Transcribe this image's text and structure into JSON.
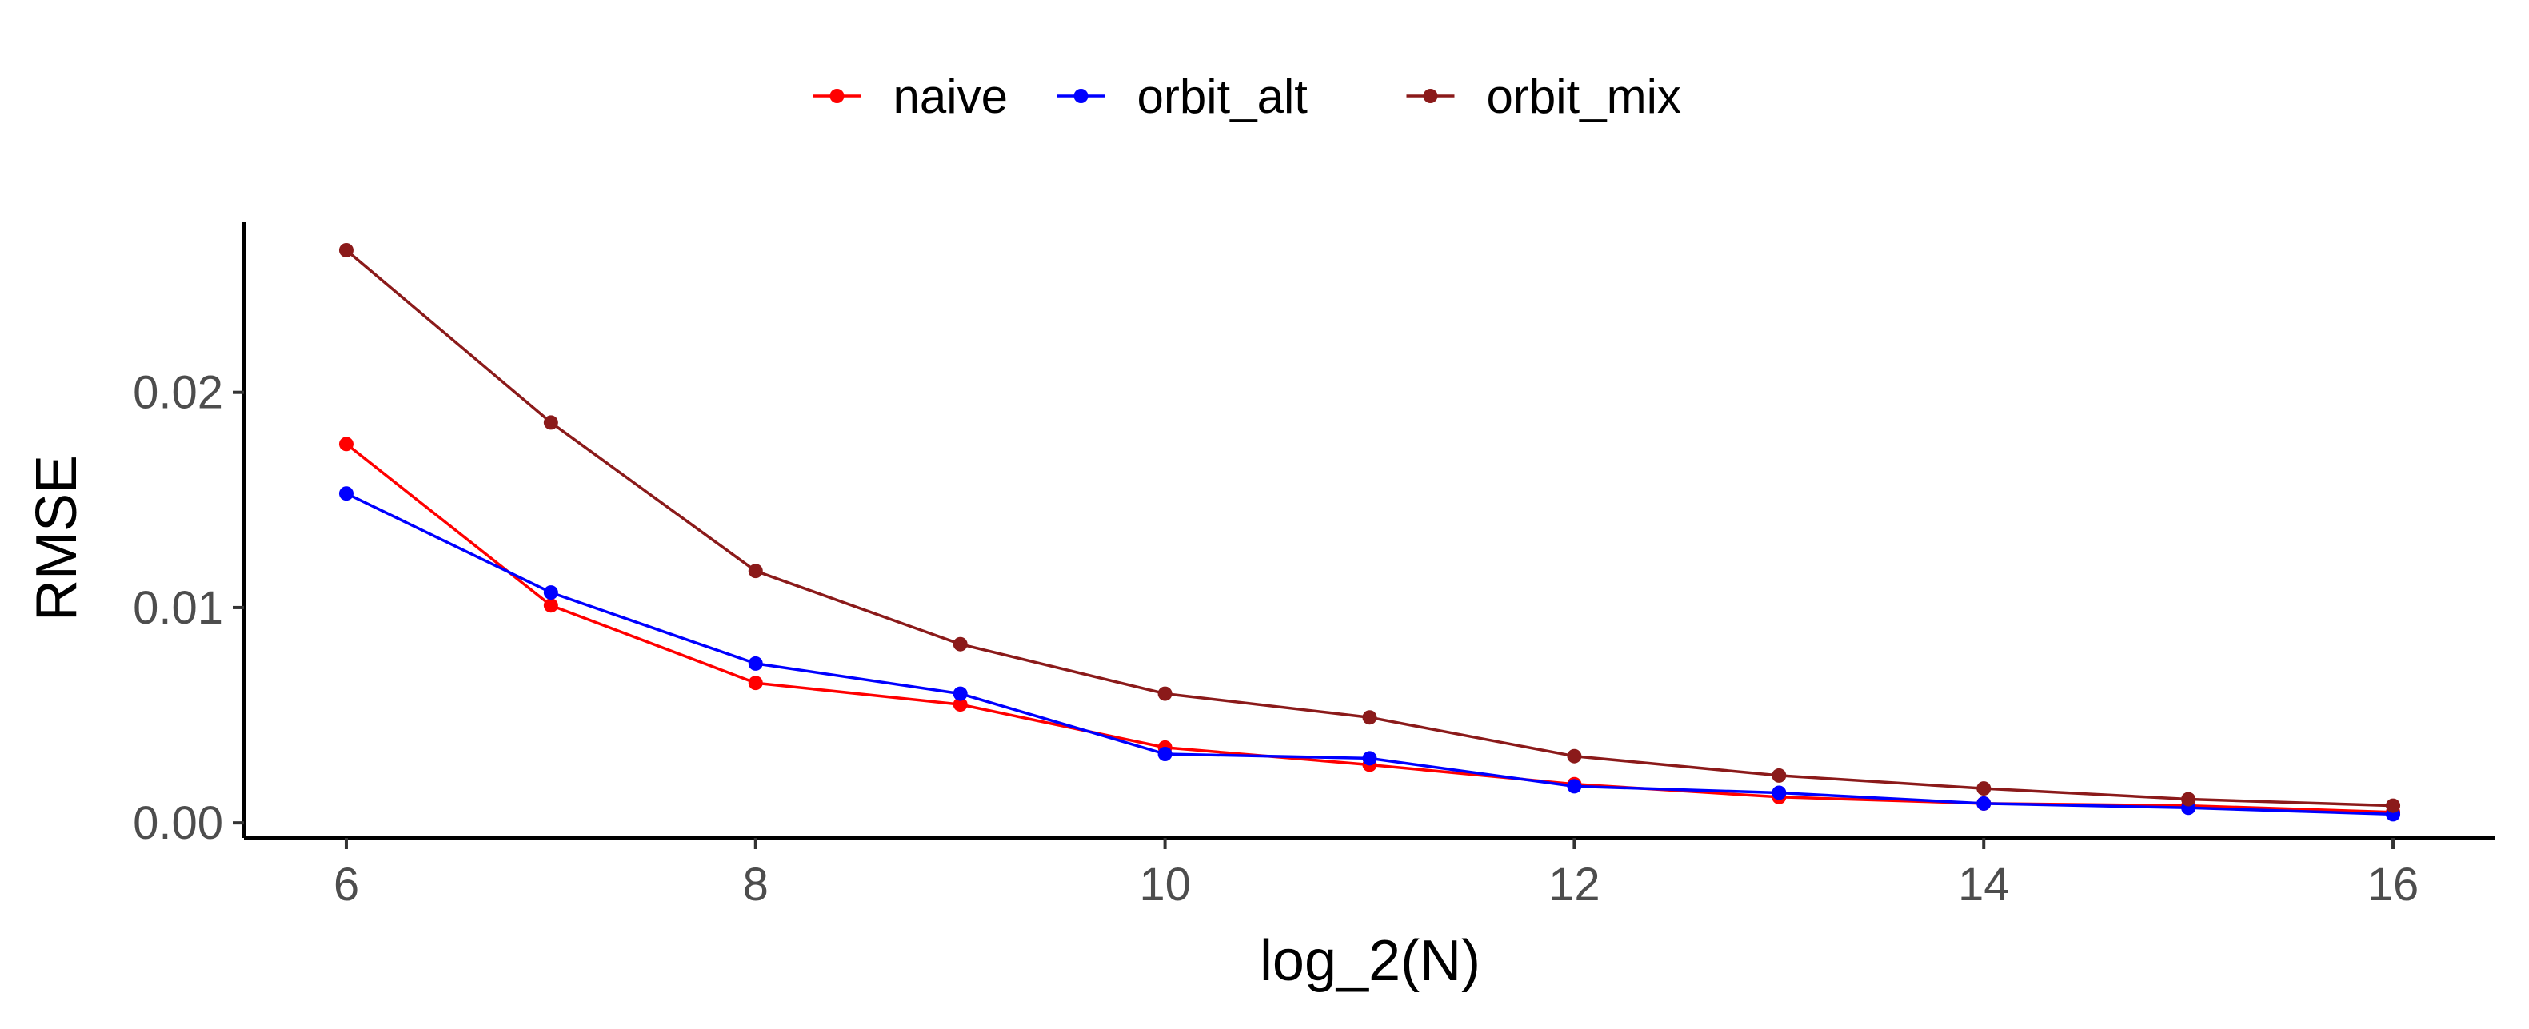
{
  "chart_data": {
    "type": "line",
    "xlabel": "log_2(N)",
    "ylabel": "RMSE",
    "x": [
      6,
      7,
      8,
      9,
      10,
      11,
      12,
      13,
      14,
      15,
      16
    ],
    "x_ticks": [
      "6",
      "8",
      "10",
      "12",
      "14",
      "16"
    ],
    "y_ticks": [
      "0.00",
      "0.01",
      "0.02"
    ],
    "xlim": [
      5.5,
      16.5
    ],
    "ylim": [
      -0.0007,
      0.0279
    ],
    "grid": false,
    "legend_position": "top",
    "series": [
      {
        "name": "naive",
        "color": "#ff0000",
        "values": [
          0.0176,
          0.0101,
          0.0065,
          0.0055,
          0.0035,
          0.0027,
          0.0018,
          0.0012,
          0.0009,
          0.0008,
          0.0005
        ]
      },
      {
        "name": "orbit_alt",
        "color": "#0000ff",
        "values": [
          0.0153,
          0.0107,
          0.0074,
          0.006,
          0.0032,
          0.003,
          0.0017,
          0.0014,
          0.0009,
          0.0007,
          0.0004
        ]
      },
      {
        "name": "orbit_mix",
        "color": "#8b1a1a",
        "values": [
          0.0266,
          0.0186,
          0.0117,
          0.0083,
          0.006,
          0.0049,
          0.0031,
          0.0022,
          0.0016,
          0.0011,
          0.0008
        ]
      }
    ]
  }
}
